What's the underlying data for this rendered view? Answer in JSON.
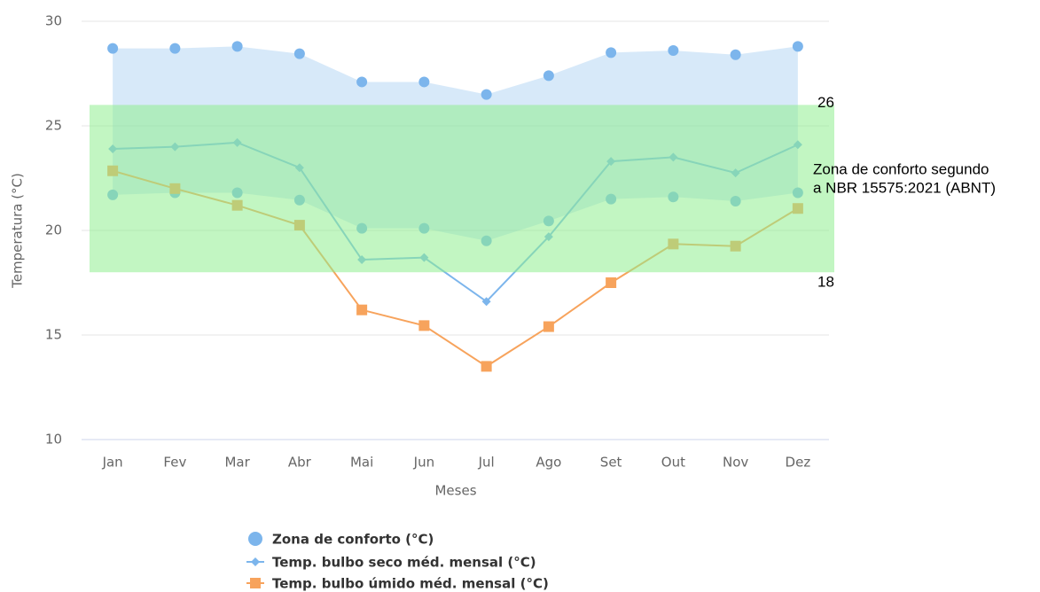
{
  "chart_data": {
    "type": "line",
    "categories": [
      "Jan",
      "Fev",
      "Mar",
      "Abr",
      "Mai",
      "Jun",
      "Jul",
      "Ago",
      "Set",
      "Out",
      "Nov",
      "Dez"
    ],
    "x_label": "Meses",
    "y_label": "Temperatura (°C)",
    "ylim": [
      10,
      30
    ],
    "yticks": [
      10,
      15,
      20,
      25,
      30
    ],
    "grid": true,
    "range_series": {
      "name": "Zona de conforto (°C)",
      "color": "#7cb5ec",
      "high": [
        28.7,
        28.7,
        28.8,
        28.45,
        27.1,
        27.1,
        26.5,
        27.4,
        28.5,
        28.6,
        28.4,
        28.8
      ],
      "low": [
        21.7,
        21.8,
        21.8,
        21.45,
        20.1,
        20.1,
        19.5,
        20.45,
        21.5,
        21.6,
        21.4,
        21.8
      ]
    },
    "series": [
      {
        "name": "Temp. bulbo seco méd. mensal (°C)",
        "color": "#7cb5ec",
        "marker": "diamond",
        "values": [
          23.9,
          24.0,
          24.2,
          23.0,
          18.6,
          18.7,
          16.6,
          19.7,
          23.3,
          23.5,
          22.75,
          24.1
        ]
      },
      {
        "name": "Temp. bulbo úmido méd. mensal (°C)",
        "color": "#f7a35c",
        "marker": "square",
        "values": [
          22.85,
          22.0,
          21.2,
          20.25,
          16.2,
          15.45,
          13.5,
          15.4,
          17.5,
          19.35,
          19.25,
          21.05
        ]
      }
    ],
    "plot_band": {
      "from": 18,
      "to": 26,
      "color": "#90ee90",
      "label": [
        "Zona de conforto segundo",
        "a NBR 15575:2021 (ABNT)"
      ]
    }
  }
}
